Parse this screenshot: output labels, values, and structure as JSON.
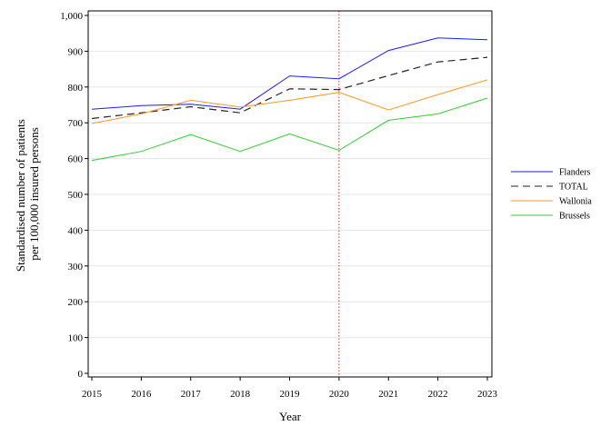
{
  "chart_data": {
    "type": "line",
    "xlabel": "Year",
    "ylabel_lines": [
      "Standardised number of patients",
      "per 100,000 insured persons"
    ],
    "x": [
      2015,
      2016,
      2017,
      2018,
      2019,
      2020,
      2021,
      2022,
      2023
    ],
    "ylim": [
      0,
      1000
    ],
    "yticks": [
      0,
      100,
      200,
      300,
      400,
      500,
      600,
      700,
      800,
      900,
      1000
    ],
    "ytick_labels": [
      "0",
      "100",
      "200",
      "300",
      "400",
      "500",
      "600",
      "700",
      "800",
      "900",
      "1,000"
    ],
    "grid": "horizontal",
    "legend_position": "right",
    "reference_line": {
      "x": 2020,
      "style": "dotted",
      "color": "#c0392b"
    },
    "series": [
      {
        "name": "Flanders",
        "color": "#1a1aff",
        "dash": "solid",
        "values": [
          738,
          748,
          752,
          738,
          831,
          823,
          902,
          937,
          932
        ]
      },
      {
        "name": "TOTAL",
        "color": "#222222",
        "dash": "dashed",
        "values": [
          712,
          728,
          745,
          728,
          795,
          793,
          832,
          870,
          883
        ]
      },
      {
        "name": "Wallonia",
        "color": "#ff9922",
        "dash": "solid",
        "values": [
          698,
          725,
          763,
          744,
          763,
          785,
          736,
          779,
          820
        ]
      },
      {
        "name": "Brussels",
        "color": "#33cc33",
        "dash": "solid",
        "values": [
          595,
          620,
          667,
          620,
          669,
          623,
          707,
          725,
          769
        ]
      }
    ]
  }
}
